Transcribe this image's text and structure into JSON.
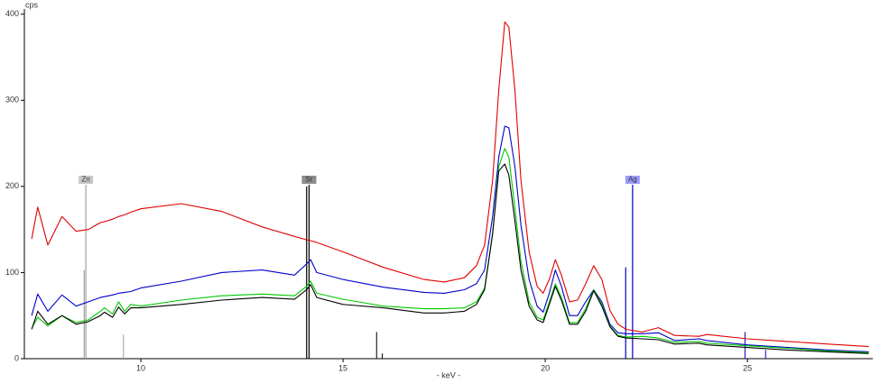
{
  "chart_data": {
    "type": "line",
    "y_label": "cps",
    "x_label": "- keV -",
    "xlim": [
      7.12,
      28.1
    ],
    "ylim": [
      0,
      406
    ],
    "xticks": [
      10,
      15,
      20,
      25
    ],
    "yticks": [
      0,
      100,
      200,
      300,
      400
    ],
    "grid": false,
    "x": [
      7.3,
      7.45,
      7.7,
      8.05,
      8.4,
      8.7,
      9.0,
      9.1,
      9.3,
      9.45,
      9.6,
      9.75,
      10,
      11,
      12,
      13,
      13.8,
      14.1,
      14.2,
      14.35,
      15,
      16,
      17,
      17.5,
      18,
      18.3,
      18.5,
      18.7,
      18.85,
      19.0,
      19.1,
      19.25,
      19.4,
      19.6,
      19.8,
      19.95,
      20.1,
      20.25,
      20.4,
      20.6,
      20.8,
      21.0,
      21.2,
      21.4,
      21.6,
      21.8,
      22,
      22.4,
      22.8,
      23.2,
      23.8,
      24,
      25,
      26,
      27,
      28
    ],
    "series": [
      {
        "color": "#e00000",
        "values": [
          139,
          176,
          132,
          165,
          148,
          150,
          158,
          159,
          162,
          165,
          167,
          170,
          174,
          180,
          171,
          153,
          142,
          138,
          137,
          135,
          124,
          106,
          92,
          89,
          94,
          108,
          132,
          207,
          312,
          391,
          385,
          312,
          207,
          124,
          84,
          76,
          92,
          115,
          97,
          66,
          68,
          87,
          108,
          92,
          56,
          40,
          34,
          31,
          36,
          27,
          26,
          28,
          23,
          20,
          17,
          14
        ]
      },
      {
        "color": "#0000c8",
        "values": [
          50,
          75,
          55,
          74,
          61,
          66,
          71,
          72,
          74,
          76,
          77,
          78,
          82,
          90,
          100,
          103,
          97,
          110,
          115,
          100,
          92,
          83,
          77,
          76,
          80,
          87,
          103,
          165,
          234,
          270,
          268,
          223,
          155,
          92,
          61,
          54,
          76,
          103,
          84,
          50,
          50,
          66,
          80,
          66,
          40,
          30,
          29,
          29,
          30,
          21,
          23,
          21,
          16,
          13,
          10,
          8
        ]
      },
      {
        "color": "#00c800",
        "values": [
          35,
          48,
          38,
          50,
          42,
          45,
          55,
          59,
          52,
          66,
          55,
          63,
          61,
          68,
          73,
          75,
          73,
          84,
          90,
          76,
          69,
          61,
          58,
          58,
          59,
          66,
          82,
          145,
          223,
          244,
          234,
          175,
          113,
          66,
          48,
          45,
          66,
          87,
          71,
          42,
          42,
          58,
          80,
          63,
          38,
          27,
          25,
          26,
          24,
          19,
          20,
          18,
          15,
          12,
          9,
          7
        ]
      },
      {
        "color": "#000000",
        "values": [
          34,
          55,
          40,
          50,
          40,
          43,
          50,
          54,
          48,
          60,
          52,
          59,
          59,
          63,
          68,
          71,
          69,
          80,
          86,
          71,
          63,
          59,
          53,
          53,
          55,
          63,
          80,
          145,
          218,
          226,
          213,
          160,
          103,
          61,
          45,
          42,
          63,
          84,
          68,
          40,
          40,
          55,
          79,
          61,
          37,
          26,
          24,
          23,
          22,
          17,
          18,
          16,
          13,
          10,
          8,
          6
        ]
      }
    ],
    "markers": [
      {
        "label": "Zn",
        "color": "#a0a0a0",
        "label_bg": "#c8c8c8",
        "lines": [
          {
            "energy": 8.64,
            "height": 202
          },
          {
            "energy": 8.6,
            "height": 103
          },
          {
            "energy": 9.57,
            "height": 28
          }
        ]
      },
      {
        "label": "Sr",
        "color": "#000000",
        "label_bg": "#8c8c8c",
        "lines": [
          {
            "energy": 14.16,
            "height": 202
          },
          {
            "energy": 14.1,
            "height": 200
          },
          {
            "energy": 15.83,
            "height": 31
          },
          {
            "energy": 15.97,
            "height": 6
          }
        ]
      },
      {
        "label": "Ag",
        "color": "#0000cc",
        "label_bg": "#9a9aff",
        "lines": [
          {
            "energy": 22.16,
            "height": 202
          },
          {
            "energy": 21.99,
            "height": 106
          },
          {
            "energy": 24.94,
            "height": 31
          },
          {
            "energy": 25.45,
            "height": 10
          }
        ]
      }
    ]
  }
}
